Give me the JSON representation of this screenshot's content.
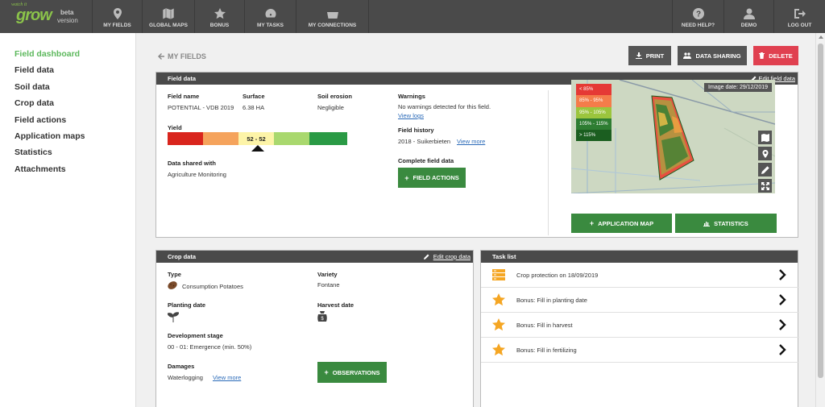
{
  "brand": {
    "logo_small": "watch it",
    "logo_big": "grow",
    "beta": "beta",
    "version": "version"
  },
  "nav": {
    "left": [
      {
        "label": "MY FIELDS",
        "icon": "map-marker-icon"
      },
      {
        "label": "GLOBAL MAPS",
        "icon": "map-icon"
      },
      {
        "label": "BONUS",
        "icon": "star-icon"
      },
      {
        "label": "MY TASKS",
        "icon": "dashboard-icon"
      },
      {
        "label": "MY CONNECTIONS",
        "icon": "basket-icon"
      }
    ],
    "right": [
      {
        "label": "NEED HELP?",
        "icon": "question-icon"
      },
      {
        "label": "DEMO",
        "icon": "user-icon"
      },
      {
        "label": "LOG OUT",
        "icon": "logout-icon"
      }
    ]
  },
  "sidebar": {
    "items": [
      {
        "label": "Field dashboard"
      },
      {
        "label": "Field data"
      },
      {
        "label": "Soil data"
      },
      {
        "label": "Crop data"
      },
      {
        "label": "Field actions"
      },
      {
        "label": "Application maps"
      },
      {
        "label": "Statistics"
      },
      {
        "label": "Attachments"
      }
    ]
  },
  "header": {
    "back_label": "MY FIELDS",
    "print_label": "PRINT",
    "sharing_label": "DATA SHARING",
    "delete_label": "DELETE"
  },
  "field_data": {
    "title": "Field data",
    "edit_label": "Edit field data",
    "field_name_label": "Field name",
    "field_name": "POTENTIAL - VDB 2019",
    "surface_label": "Surface",
    "surface": "6.38 HA",
    "erosion_label": "Soil erosion",
    "erosion": "Negligible",
    "yield_label": "Yield",
    "yield_value": "52 - 52",
    "yield_colors": [
      "#d9251d",
      "#f5a35c",
      "#fdf4a8",
      "#a9d86e",
      "#2a9a45"
    ],
    "shared_label": "Data shared with",
    "shared_with": "Agriculture Monitoring",
    "warnings_label": "Warnings",
    "warnings_text": "No warnings detected for this field.",
    "view_logs": "View logs",
    "history_label": "Field history",
    "history_text": "2018 - Suikerbieten",
    "view_more": "View more",
    "complete_label": "Complete field data",
    "field_actions_button": "FIELD ACTIONS",
    "image_date": "Image date: 29/12/2019",
    "legend": [
      {
        "label": "< 85%",
        "color": "#e53935"
      },
      {
        "label": "85% - 95%",
        "color": "#f47c4a"
      },
      {
        "label": "95% - 105%",
        "color": "#9bc53d"
      },
      {
        "label": "105% - 115%",
        "color": "#2e7d32"
      },
      {
        "label": "> 115%",
        "color": "#1b5e20"
      }
    ],
    "application_map_button": "APPLICATION MAP",
    "statistics_button": "STATISTICS"
  },
  "crop_data": {
    "title": "Crop data",
    "edit_label": "Edit crop data",
    "type_label": "Type",
    "type": "Consumption Potatoes",
    "variety_label": "Variety",
    "variety": "Fontane",
    "planting_label": "Planting date",
    "harvest_label": "Harvest date",
    "stage_label": "Development stage",
    "stage": "00 - 01: Emergence (min. 50%)",
    "damages_label": "Damages",
    "damages": "Waterlogging",
    "view_more": "View more",
    "observations_button": "OBSERVATIONS"
  },
  "task_list": {
    "title": "Task list",
    "items": [
      {
        "label": "Crop protection on 18/09/2019",
        "icon": "layers-icon"
      },
      {
        "label": "Bonus: Fill in planting date",
        "icon": "star-icon"
      },
      {
        "label": "Bonus: Fill in harvest",
        "icon": "star-icon"
      },
      {
        "label": "Bonus: Fill in fertilizing",
        "icon": "star-icon"
      }
    ]
  }
}
